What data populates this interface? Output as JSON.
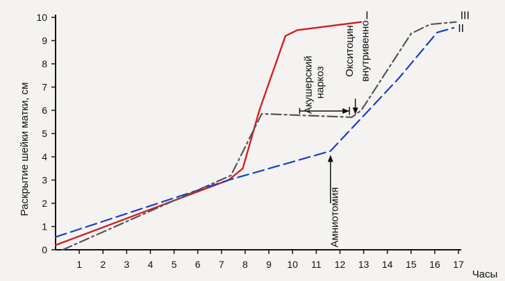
{
  "chart_data": {
    "type": "line",
    "ylabel": "Раскрытие шейки матки, см",
    "xlabel": "Часы",
    "xlim": [
      0,
      17
    ],
    "ylim": [
      0,
      10
    ],
    "x_ticks": [
      1,
      2,
      3,
      4,
      5,
      6,
      7,
      8,
      9,
      10,
      11,
      12,
      13,
      14,
      15,
      16,
      17
    ],
    "y_ticks": [
      0,
      1,
      2,
      3,
      4,
      5,
      6,
      7,
      8,
      9,
      10
    ],
    "series": [
      {
        "name": "I",
        "color": "#d42020",
        "style": "solid",
        "points": [
          [
            0,
            0.2
          ],
          [
            7.3,
            3.0
          ],
          [
            7.9,
            3.5
          ],
          [
            8.6,
            6.0
          ],
          [
            9.7,
            9.2
          ],
          [
            10.2,
            9.45
          ],
          [
            12.9,
            9.8
          ]
        ]
      },
      {
        "name": "II",
        "color": "#1a3fc4",
        "style": "dashed",
        "points": [
          [
            0,
            0.55
          ],
          [
            7.3,
            3.0
          ],
          [
            11.6,
            4.25
          ],
          [
            14.5,
            7.4
          ],
          [
            16.1,
            9.35
          ],
          [
            16.8,
            9.55
          ]
        ]
      },
      {
        "name": "III",
        "color": "#555555",
        "style": "dashdot",
        "points": [
          [
            0.3,
            0
          ],
          [
            7.4,
            3.2
          ],
          [
            8.7,
            5.85
          ],
          [
            12.5,
            5.7
          ],
          [
            12.9,
            6.0
          ],
          [
            15.0,
            9.3
          ],
          [
            15.8,
            9.7
          ],
          [
            16.9,
            9.8
          ]
        ]
      }
    ],
    "annotations": [
      {
        "text": "Акушерский",
        "x": 10.8,
        "y": 7.1
      },
      {
        "text": "наркоз",
        "x": 11.3,
        "y": 7.2
      },
      {
        "text": "Окситоцин",
        "x": 12.55,
        "y": 8.55
      },
      {
        "text": "внутривенно",
        "x": 13.2,
        "y": 8.55
      },
      {
        "text": "Амниотомия",
        "x": 11.8,
        "y": 0.1
      }
    ]
  }
}
